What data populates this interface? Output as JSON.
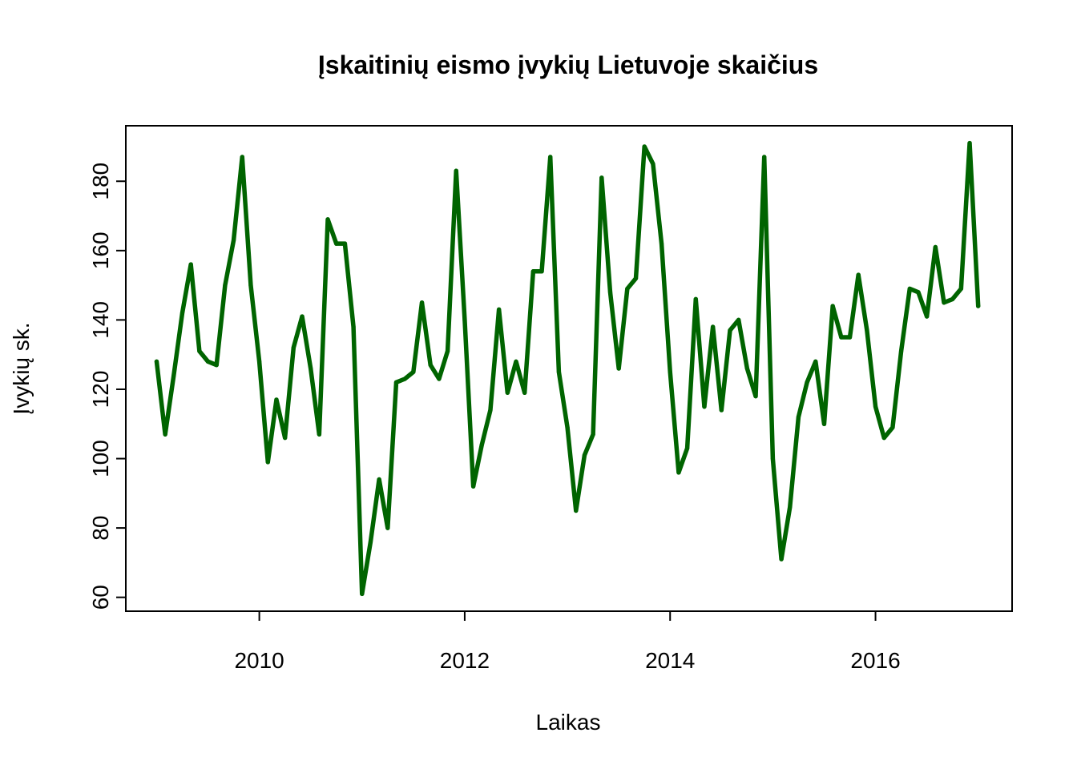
{
  "chart_data": {
    "type": "line",
    "title": "Įskaitinių eismo įvykių Lietuvoje skaičius",
    "xlabel": "Laikas",
    "ylabel": "Įvykių sk.",
    "xlim": [
      2008.7,
      2017.33
    ],
    "ylim": [
      56,
      196
    ],
    "x_ticks": [
      2010,
      2012,
      2014,
      2016
    ],
    "y_ticks": [
      60,
      80,
      100,
      120,
      140,
      160,
      180
    ],
    "line_color": "#006400",
    "grid": false,
    "series": [
      {
        "name": "Įvykių sk.",
        "start": 2009.0,
        "frequency": 12,
        "values": [
          128,
          107,
          124,
          142,
          156,
          131,
          128,
          127,
          150,
          163,
          187,
          150,
          128,
          99,
          117,
          106,
          132,
          141,
          126,
          107,
          169,
          162,
          162,
          138,
          61,
          76,
          94,
          80,
          122,
          123,
          125,
          145,
          127,
          123,
          131,
          183,
          140,
          92,
          104,
          114,
          143,
          119,
          128,
          119,
          154,
          154,
          187,
          125,
          109,
          85,
          101,
          107,
          181,
          148,
          126,
          149,
          152,
          190,
          185,
          162,
          125,
          96,
          103,
          146,
          115,
          138,
          114,
          137,
          140,
          126,
          118,
          187,
          100,
          71,
          86,
          112,
          122,
          128,
          110,
          144,
          135,
          135,
          153,
          137,
          115,
          106,
          109,
          131,
          149,
          148,
          141,
          161,
          145,
          146,
          149,
          191,
          144
        ]
      }
    ]
  }
}
